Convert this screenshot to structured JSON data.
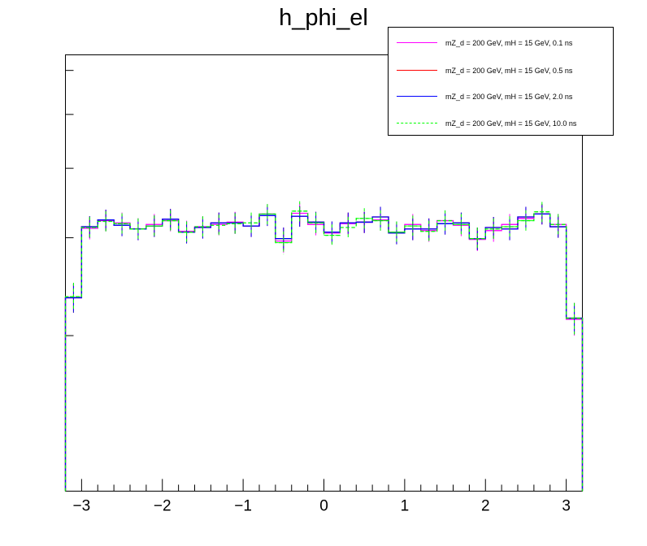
{
  "chart_data": {
    "type": "line",
    "style": "step histogram with error bars",
    "title": "h_phi_el",
    "xlabel": "",
    "ylabel": "",
    "xlim": [
      -3.2,
      3.2
    ],
    "ylim": [
      1.05,
      6.4
    ],
    "y_scale": "log",
    "y_tick_labels_shown": false,
    "x_ticks": [
      -3,
      -2,
      -1,
      0,
      1,
      2,
      3
    ],
    "x_tick_labels": [
      "−3",
      "−2",
      "−1",
      "0",
      "1",
      "2",
      "3"
    ],
    "y_ticks": [
      2,
      3,
      4,
      5,
      6
    ],
    "bin_width": 0.2,
    "grid": false,
    "legend_position": "top-right",
    "series": [
      {
        "name": "mZ_d = 200 GeV, mH = 15 GeV, 0.1 ns",
        "color": "#ff00ff",
        "dashed": false,
        "yerr": 0.14,
        "values": [
          2.34,
          3.12,
          3.22,
          3.19,
          3.11,
          3.17,
          3.22,
          3.08,
          3.14,
          3.17,
          3.2,
          3.15,
          3.31,
          2.96,
          3.32,
          3.17,
          3.06,
          3.18,
          3.2,
          3.23,
          3.07,
          3.17,
          3.09,
          3.22,
          3.16,
          2.98,
          3.09,
          3.17,
          3.25,
          3.31,
          3.17,
          2.14
        ]
      },
      {
        "name": "mZ_d = 200 GeV, mH = 15 GeV, 0.5 ns",
        "color": "#ff0000",
        "dashed": false,
        "yerr": 0.14,
        "values": [
          2.34,
          3.14,
          3.23,
          3.16,
          3.11,
          3.15,
          3.24,
          3.07,
          3.13,
          3.19,
          3.19,
          3.15,
          3.29,
          2.99,
          3.28,
          3.2,
          3.07,
          3.19,
          3.2,
          3.27,
          3.06,
          3.11,
          3.11,
          3.18,
          3.19,
          2.99,
          3.13,
          3.11,
          3.27,
          3.31,
          3.14,
          2.15
        ]
      },
      {
        "name": "mZ_d = 200 GeV, mH = 15 GeV, 2.0 ns",
        "color": "#0000ff",
        "dashed": false,
        "yerr": 0.14,
        "values": [
          2.34,
          3.14,
          3.23,
          3.16,
          3.11,
          3.15,
          3.24,
          3.07,
          3.13,
          3.19,
          3.19,
          3.15,
          3.29,
          2.99,
          3.28,
          3.2,
          3.07,
          3.19,
          3.2,
          3.27,
          3.06,
          3.11,
          3.11,
          3.18,
          3.19,
          2.99,
          3.13,
          3.11,
          3.27,
          3.31,
          3.14,
          2.15
        ]
      },
      {
        "name": "mZ_d = 200 GeV, mH = 15 GeV, 10.0 ns",
        "color": "#00ff00",
        "dashed": true,
        "yerr": 0.14,
        "values": [
          2.35,
          3.13,
          3.21,
          3.18,
          3.11,
          3.15,
          3.22,
          3.07,
          3.14,
          3.16,
          3.18,
          3.19,
          3.31,
          2.94,
          3.35,
          3.19,
          3.03,
          3.13,
          3.25,
          3.22,
          3.07,
          3.15,
          3.08,
          3.22,
          3.17,
          2.99,
          3.11,
          3.14,
          3.22,
          3.34,
          3.17,
          2.15
        ]
      }
    ]
  }
}
